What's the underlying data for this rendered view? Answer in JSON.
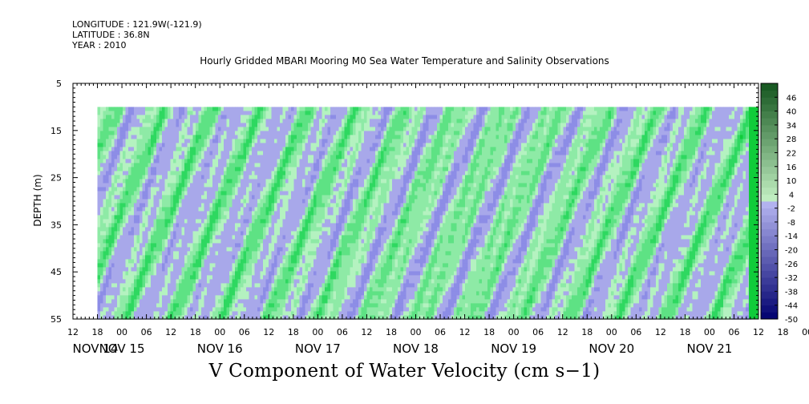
{
  "header": {
    "longitude": "LONGITUDE : 121.9W(-121.9)",
    "latitude": "LATITUDE : 36.8N",
    "year": "YEAR : 2010"
  },
  "chart_data": {
    "type": "heatmap",
    "title": "Hourly Gridded MBARI Mooring M0 Sea Water Temperature and Salinity Observations",
    "figure_title": "V Component of Water Velocity (cm s−1)",
    "ylabel": "DEPTH (m)",
    "ylim": [
      5,
      55
    ],
    "y_inverted": true,
    "y_ticks": [
      "5",
      "15",
      "25",
      "35",
      "45",
      "55"
    ],
    "data_depth_range": [
      10,
      55
    ],
    "x_hour_labels": [
      "12",
      "18",
      "00",
      "06",
      "12",
      "18",
      "00",
      "06",
      "12",
      "18",
      "00",
      "06",
      "12",
      "18",
      "00",
      "06",
      "12",
      "18",
      "00",
      "06",
      "12",
      "18",
      "00",
      "06",
      "12",
      "18",
      "00",
      "06",
      "12",
      "18",
      "00",
      "06",
      "12"
    ],
    "x_day_labels": [
      "NOV 14",
      "NOV 15",
      "NOV 16",
      "NOV 17",
      "NOV 18",
      "NOV 19",
      "NOV 20",
      "NOV 21"
    ],
    "x_range_hours_from_nov14_00": [
      12,
      180
    ],
    "data_start_hours_from_nov14_00": 18,
    "colorbar": {
      "labels": [
        "46",
        "40",
        "34",
        "28",
        "22",
        "16",
        "10",
        "4",
        "-2",
        "-8",
        "-14",
        "-20",
        "-26",
        "-32",
        "-38",
        "-44",
        "-50"
      ],
      "min": -50,
      "max": 52,
      "step": 3
    },
    "pattern_note": "",
    "colors": {
      "plot_bg": "#ffffff",
      "neg_light": "#a8a8ea",
      "pos_light": "#9ef0b4",
      "pos_mid": "#4ee07a",
      "pos_strong": "#10d43e"
    }
  }
}
